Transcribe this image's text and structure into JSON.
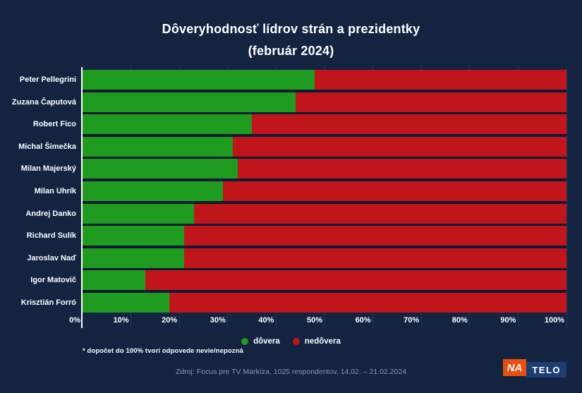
{
  "title": {
    "line1": "Dôveryhodnosť lídrov strán a prezidentky",
    "line2": "(február 2024)"
  },
  "chart_data": {
    "type": "bar",
    "orientation": "horizontal",
    "stacked": true,
    "title": "Dôveryhodnosť lídrov strán a prezidentky (február 2024)",
    "categories": [
      "Peter Pellegrini",
      "Zuzana Čaputová",
      "Robert Fico",
      "Michal Šimečka",
      "Milan Majerský",
      "Milan Uhrík",
      "Andrej Danko",
      "Richard Sulík",
      "Jaroslav Naď",
      "Igor Matovič",
      "Krisztián Forró"
    ],
    "series": [
      {
        "name": "dôvera",
        "color": "#1f9b1f",
        "values": [
          48,
          44,
          35,
          31,
          32,
          29,
          23,
          21,
          21,
          13,
          18
        ]
      },
      {
        "name": "nedôvera",
        "color": "#c0151a",
        "values": [
          52,
          56,
          65,
          69,
          68,
          71,
          77,
          79,
          79,
          87,
          82
        ]
      }
    ],
    "x_ticks": [
      "0%",
      "10%",
      "20%",
      "30%",
      "40%",
      "50%",
      "60%",
      "70%",
      "80%",
      "90%",
      "100%"
    ],
    "xlim": [
      0,
      100
    ],
    "grid": true,
    "legend_position": "bottom",
    "note": "red segment fills bar to 100%"
  },
  "legend": {
    "items": [
      {
        "label": "dôvera",
        "color": "#1f9b1f"
      },
      {
        "label": "nedôvera",
        "color": "#c0151a"
      }
    ]
  },
  "footnote": "* dopočet do 100% tvorí odpovede nevie/nepozná",
  "source": "Zdroj: Focus pre TV Markíza, 1025 respondentov, 14.02. – 21.02.2024",
  "logo": {
    "na": "NA",
    "telo": "TELO"
  },
  "colors": {
    "background": "#142340",
    "dovera_green": "#1f9b1f",
    "nedovera_red": "#c0151a",
    "logo_na_bg": "#e8500f",
    "logo_telo_bg": "#1d3e72",
    "gridline": "#25375c",
    "source_text": "#8d99af"
  }
}
